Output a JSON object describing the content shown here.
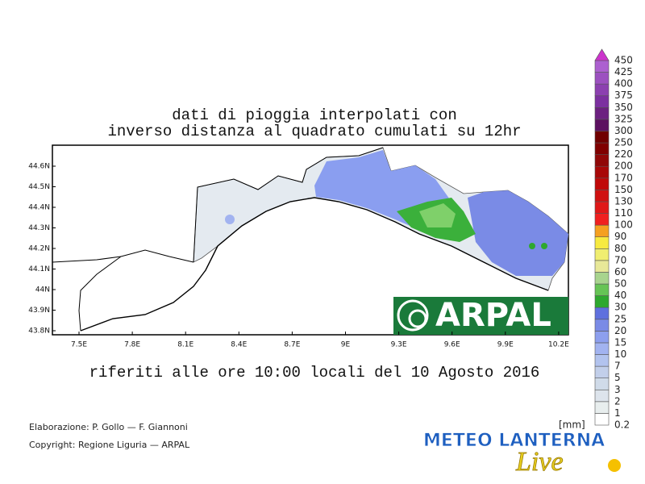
{
  "title": [
    "dati di pioggia interpolati con",
    "inverso distanza al quadrato cumulati su 12hr"
  ],
  "subtitle": "riferiti alle ore 10:00 locali del 10 Agosto 2016",
  "map": {
    "lon_labels": [
      "7.5E",
      "7.8E",
      "8.1E",
      "8.4E",
      "8.7E",
      "9E",
      "9.3E",
      "9.6E",
      "9.9E",
      "10.2E"
    ],
    "lat_labels": [
      "44.6N",
      "44.5N",
      "44.4N",
      "44.3N",
      "44.2N",
      "44.1N",
      "44N",
      "43.9N",
      "43.8N"
    ]
  },
  "colorbar": {
    "unit": "[mm]",
    "levels": [
      0.2,
      1,
      2,
      3,
      5,
      7,
      10,
      15,
      20,
      25,
      30,
      40,
      50,
      60,
      70,
      80,
      90,
      100,
      110,
      130,
      150,
      170,
      200,
      220,
      250,
      300,
      325,
      350,
      375,
      400,
      425,
      450
    ],
    "colors": [
      "#ffffff",
      "#e8eeee",
      "#dde4ec",
      "#d0dbe9",
      "#c2cfea",
      "#b2c3ee",
      "#a2b3f0",
      "#8d9fee",
      "#7a8be6",
      "#5f70de",
      "#2ea82e",
      "#66c455",
      "#a8d48e",
      "#e8e898",
      "#f0ee70",
      "#f7ea40",
      "#f5a020",
      "#f02020",
      "#e01818",
      "#d01010",
      "#c00808",
      "#a80808",
      "#900808",
      "#800000",
      "#700000",
      "#5c1060",
      "#6c2080",
      "#7c30a0",
      "#8c40b0",
      "#9c50c0",
      "#ac60d0"
    ],
    "top_color": "#cc33cc"
  },
  "footer": {
    "credits": "Elaborazione: P. Gollo — F. Giannoni",
    "copyright": "Copyright: Regione Liguria — ARPAL"
  },
  "logos": {
    "arpal": "ARPAL",
    "meteo": "METEO LANTERNA",
    "live": "Live"
  }
}
